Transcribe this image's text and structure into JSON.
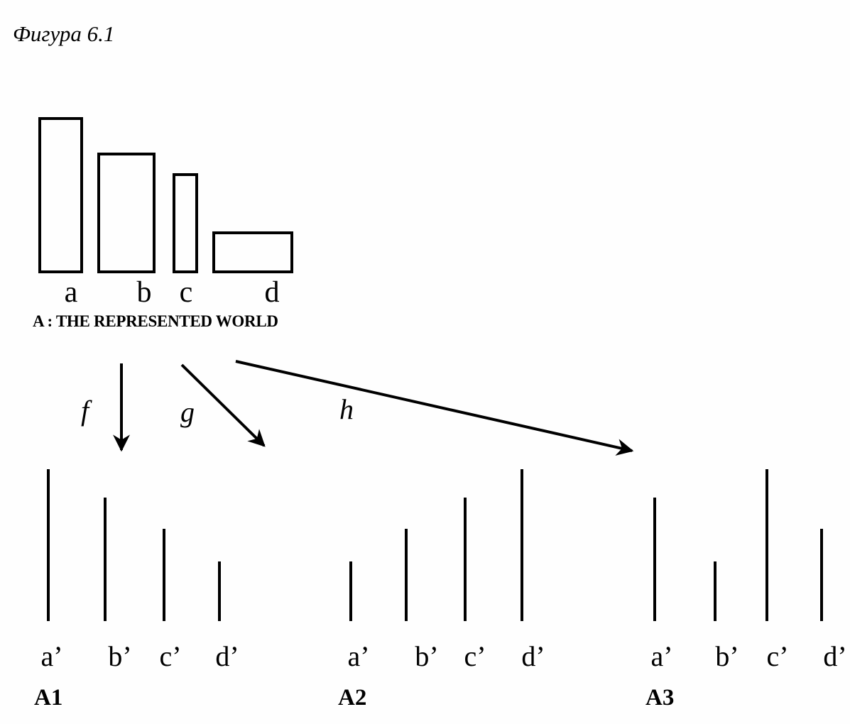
{
  "figure_title": "Фигура 6.1",
  "represented_world": {
    "caption": "A : THE REPRESENTED WORLD",
    "items": [
      {
        "label": "a",
        "height": 216,
        "width": 59
      },
      {
        "label": "b",
        "height": 166,
        "width": 78
      },
      {
        "label": "c",
        "height": 137,
        "width": 32
      },
      {
        "label": "d",
        "height": 55,
        "width": 110
      }
    ]
  },
  "mappings": [
    {
      "label": "f"
    },
    {
      "label": "g"
    },
    {
      "label": "h"
    }
  ],
  "representations": [
    {
      "name": "A1",
      "items": [
        {
          "label": "a’",
          "height": 214
        },
        {
          "label": "b’",
          "height": 174
        },
        {
          "label": "c’",
          "height": 130
        },
        {
          "label": "d’",
          "height": 84
        }
      ]
    },
    {
      "name": "A2",
      "items": [
        {
          "label": "a’",
          "height": 84
        },
        {
          "label": "b’",
          "height": 130
        },
        {
          "label": "c’",
          "height": 174
        },
        {
          "label": "d’",
          "height": 214
        }
      ]
    },
    {
      "name": "A3",
      "items": [
        {
          "label": "a’",
          "height": 174
        },
        {
          "label": "b’",
          "height": 84
        },
        {
          "label": "c’",
          "height": 214
        },
        {
          "label": "d’",
          "height": 130
        }
      ]
    }
  ]
}
